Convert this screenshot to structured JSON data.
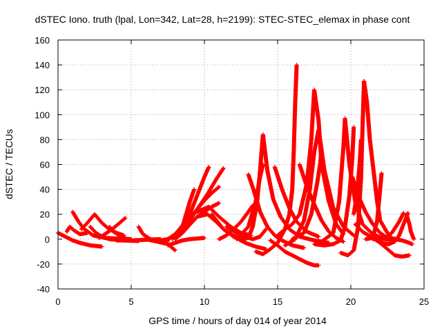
{
  "chart_data": {
    "type": "scatter",
    "title": "dSTEC Iono. truth (lpal, Lon=342, Lat=28, h=2199): STEC-STEC_elemax in phase cont",
    "xlabel": "GPS time / hours of day 014 of year 2014",
    "ylabel": "dSTEC  / TECUs",
    "xlim": [
      0,
      25
    ],
    "ylim": [
      -40,
      160
    ],
    "xticks": [
      0,
      5,
      10,
      15,
      20,
      25
    ],
    "yticks": [
      -40,
      -20,
      0,
      20,
      40,
      60,
      80,
      100,
      120,
      140,
      160
    ],
    "grid": true,
    "legend": "none",
    "marker": "+",
    "color": "#ff0000",
    "series": [
      {
        "points": [
          [
            0,
            5
          ],
          [
            0.5,
            2
          ],
          [
            1.0,
            -1
          ],
          [
            1.5,
            -3
          ],
          [
            2.2,
            -5
          ],
          [
            3.0,
            -6
          ]
        ]
      },
      {
        "points": [
          [
            0.6,
            6
          ],
          [
            0.8,
            10
          ],
          [
            1.1,
            7
          ],
          [
            1.5,
            4
          ],
          [
            2.0,
            5
          ]
        ]
      },
      {
        "points": [
          [
            1.0,
            22
          ],
          [
            1.4,
            14
          ],
          [
            1.8,
            8
          ],
          [
            2.4,
            3
          ],
          [
            3.2,
            1
          ],
          [
            4.0,
            0.5
          ],
          [
            5.0,
            0
          ]
        ]
      },
      {
        "points": [
          [
            1.6,
            8
          ],
          [
            2.0,
            13
          ],
          [
            2.5,
            20
          ],
          [
            3.0,
            13
          ],
          [
            3.5,
            8
          ],
          [
            4.0,
            5
          ],
          [
            4.5,
            3
          ]
        ]
      },
      {
        "points": [
          [
            2.2,
            10
          ],
          [
            2.6,
            5
          ],
          [
            3.0,
            2
          ],
          [
            3.5,
            0
          ],
          [
            4.5,
            -1
          ],
          [
            5.5,
            -1.5
          ]
        ]
      },
      {
        "points": [
          [
            2.8,
            1
          ],
          [
            3.2,
            4
          ],
          [
            3.7,
            8
          ],
          [
            4.1,
            12
          ],
          [
            4.6,
            17
          ]
        ]
      },
      {
        "points": [
          [
            3.5,
            10
          ],
          [
            3.8,
            6
          ],
          [
            4.2,
            3
          ],
          [
            4.6,
            1
          ]
        ]
      },
      {
        "points": [
          [
            4.0,
            -1
          ],
          [
            5.0,
            -1
          ],
          [
            6.0,
            -0.5
          ],
          [
            7.0,
            0
          ]
        ]
      },
      {
        "points": [
          [
            5.5,
            10
          ],
          [
            5.8,
            4
          ],
          [
            6.3,
            0
          ],
          [
            7.0,
            -1.5
          ],
          [
            7.5,
            -2
          ]
        ]
      },
      {
        "points": [
          [
            6.0,
            0
          ],
          [
            6.8,
            -2
          ],
          [
            7.5,
            -4
          ],
          [
            7.8,
            -7
          ],
          [
            8.0,
            -9
          ]
        ]
      },
      {
        "points": [
          [
            6.5,
            -1
          ],
          [
            7.0,
            -1
          ],
          [
            7.5,
            0
          ],
          [
            8.0,
            3
          ],
          [
            8.5,
            10
          ],
          [
            9.0,
            30
          ],
          [
            9.3,
            40
          ]
        ]
      },
      {
        "points": [
          [
            7.0,
            -2
          ],
          [
            7.5,
            0
          ],
          [
            8.0,
            4
          ],
          [
            8.5,
            11
          ],
          [
            9.0,
            20
          ],
          [
            9.5,
            35
          ],
          [
            10.0,
            50
          ],
          [
            10.3,
            58
          ]
        ]
      },
      {
        "points": [
          [
            7.3,
            -2
          ],
          [
            7.8,
            2
          ],
          [
            8.3,
            7
          ],
          [
            8.8,
            14
          ],
          [
            9.5,
            24
          ],
          [
            10.2,
            36
          ],
          [
            10.8,
            48
          ],
          [
            11.3,
            57
          ]
        ]
      },
      {
        "points": [
          [
            7.5,
            -5
          ],
          [
            8.0,
            -3
          ],
          [
            8.5,
            -1
          ],
          [
            9.0,
            0
          ],
          [
            9.5,
            0.5
          ],
          [
            10.0,
            1
          ]
        ]
      },
      {
        "points": [
          [
            7.8,
            0
          ],
          [
            8.5,
            7
          ],
          [
            9.0,
            15
          ],
          [
            9.5,
            24
          ],
          [
            10.0,
            31
          ],
          [
            10.5,
            37
          ],
          [
            11.0,
            42
          ]
        ]
      },
      {
        "points": [
          [
            8.0,
            0
          ],
          [
            8.5,
            5
          ],
          [
            9.0,
            12
          ],
          [
            9.5,
            18
          ],
          [
            10.0,
            22
          ],
          [
            10.5,
            26
          ],
          [
            11.0,
            29
          ]
        ]
      },
      {
        "points": [
          [
            8.5,
            5
          ],
          [
            9.5,
            18
          ],
          [
            10.2,
            20
          ],
          [
            10.8,
            14
          ],
          [
            11.3,
            8
          ],
          [
            11.8,
            4
          ],
          [
            12.3,
            1
          ],
          [
            12.8,
            0
          ]
        ]
      },
      {
        "points": [
          [
            9.5,
            22
          ],
          [
            10.3,
            26
          ],
          [
            11.0,
            18
          ],
          [
            11.8,
            10
          ],
          [
            12.5,
            5
          ],
          [
            13.2,
            3
          ]
        ]
      },
      {
        "points": [
          [
            10.5,
            20
          ],
          [
            11.3,
            8
          ],
          [
            12.0,
            2
          ],
          [
            12.8,
            -3
          ],
          [
            13.5,
            -6
          ],
          [
            14.2,
            -8
          ]
        ]
      },
      {
        "points": [
          [
            11.0,
            0
          ],
          [
            11.5,
            3
          ],
          [
            12.0,
            8
          ],
          [
            12.5,
            14
          ],
          [
            13.0,
            22
          ],
          [
            13.3,
            27
          ]
        ]
      },
      {
        "points": [
          [
            11.5,
            10
          ],
          [
            12.2,
            5
          ],
          [
            12.8,
            2
          ],
          [
            13.3,
            0
          ],
          [
            13.8,
            2
          ],
          [
            14.2,
            8
          ]
        ]
      },
      {
        "points": [
          [
            12.0,
            2
          ],
          [
            12.5,
            0
          ],
          [
            13.0,
            1
          ],
          [
            13.3,
            10
          ],
          [
            13.6,
            30
          ],
          [
            13.8,
            55
          ],
          [
            13.9,
            70
          ],
          [
            14.0,
            84
          ]
        ]
      },
      {
        "points": [
          [
            12.2,
            0
          ],
          [
            13.0,
            10
          ],
          [
            13.5,
            30
          ],
          [
            13.8,
            50
          ],
          [
            14.0,
            60
          ]
        ]
      },
      {
        "points": [
          [
            13.0,
            52
          ],
          [
            13.4,
            38
          ],
          [
            13.8,
            22
          ],
          [
            14.3,
            10
          ],
          [
            14.8,
            3
          ],
          [
            15.3,
            -1
          ],
          [
            16.0,
            -5
          ],
          [
            16.8,
            -7
          ]
        ]
      },
      {
        "points": [
          [
            13.5,
            -10
          ],
          [
            14.0,
            -12
          ],
          [
            14.5,
            -8
          ],
          [
            15.0,
            -3
          ],
          [
            15.5,
            8
          ],
          [
            15.8,
            20
          ],
          [
            16.0,
            40
          ],
          [
            16.1,
            70
          ],
          [
            16.2,
            110
          ],
          [
            16.3,
            140
          ]
        ]
      },
      {
        "points": [
          [
            14.0,
            84
          ],
          [
            14.3,
            55
          ],
          [
            14.7,
            32
          ],
          [
            15.2,
            18
          ],
          [
            15.8,
            8
          ],
          [
            16.5,
            2
          ],
          [
            17.5,
            -1
          ],
          [
            18.5,
            -3
          ]
        ]
      },
      {
        "points": [
          [
            14.5,
            -1
          ],
          [
            15.0,
            -5
          ],
          [
            15.5,
            -10
          ],
          [
            16.0,
            -13
          ],
          [
            16.5,
            -16
          ],
          [
            17.0,
            -19
          ],
          [
            17.5,
            -21
          ],
          [
            17.8,
            -21
          ]
        ]
      },
      {
        "points": [
          [
            14.8,
            58
          ],
          [
            15.3,
            40
          ],
          [
            15.8,
            25
          ],
          [
            16.3,
            14
          ],
          [
            17.0,
            6
          ],
          [
            17.8,
            2
          ]
        ]
      },
      {
        "points": [
          [
            15.0,
            3
          ],
          [
            15.5,
            8
          ],
          [
            16.0,
            12
          ],
          [
            16.5,
            20
          ],
          [
            17.0,
            45
          ],
          [
            17.3,
            80
          ],
          [
            17.5,
            120
          ],
          [
            17.8,
            95
          ],
          [
            18.0,
            60
          ],
          [
            18.5,
            30
          ],
          [
            19.0,
            12
          ],
          [
            19.5,
            4
          ]
        ]
      },
      {
        "points": [
          [
            15.5,
            -5
          ],
          [
            16.2,
            0
          ],
          [
            16.8,
            15
          ],
          [
            17.2,
            40
          ],
          [
            17.5,
            70
          ],
          [
            17.8,
            88
          ],
          [
            18.2,
            55
          ],
          [
            18.8,
            25
          ],
          [
            19.5,
            10
          ],
          [
            20.2,
            3
          ]
        ]
      },
      {
        "points": [
          [
            16.0,
            0
          ],
          [
            16.8,
            5
          ],
          [
            17.3,
            20
          ],
          [
            17.7,
            45
          ],
          [
            17.9,
            60
          ],
          [
            18.0,
            72
          ]
        ]
      },
      {
        "points": [
          [
            16.5,
            60
          ],
          [
            17.0,
            42
          ],
          [
            17.5,
            28
          ],
          [
            18.0,
            15
          ],
          [
            18.5,
            6
          ],
          [
            19.0,
            1
          ],
          [
            19.5,
            -2
          ]
        ]
      },
      {
        "points": [
          [
            17.5,
            -4
          ],
          [
            18.2,
            -5
          ],
          [
            18.8,
            -4
          ],
          [
            19.3,
            -1
          ],
          [
            19.6,
            10
          ],
          [
            19.9,
            35
          ],
          [
            20.1,
            65
          ],
          [
            20.2,
            90
          ]
        ]
      },
      {
        "points": [
          [
            18.0,
            -2
          ],
          [
            18.8,
            5
          ],
          [
            19.2,
            30
          ],
          [
            19.5,
            75
          ],
          [
            19.6,
            97
          ]
        ]
      },
      {
        "points": [
          [
            19.3,
            -11
          ],
          [
            19.8,
            -13
          ],
          [
            20.2,
            -9
          ],
          [
            20.5,
            10
          ],
          [
            20.7,
            50
          ],
          [
            20.8,
            90
          ],
          [
            20.9,
            127
          ]
        ]
      },
      {
        "points": [
          [
            19.6,
            97
          ],
          [
            19.9,
            60
          ],
          [
            20.3,
            30
          ],
          [
            20.8,
            12
          ],
          [
            21.5,
            4
          ],
          [
            22.3,
            0
          ],
          [
            23.0,
            -1
          ]
        ]
      },
      {
        "points": [
          [
            20.1,
            50
          ],
          [
            20.5,
            35
          ],
          [
            21.0,
            22
          ],
          [
            21.5,
            12
          ],
          [
            22.0,
            5
          ],
          [
            22.5,
            1
          ],
          [
            23.2,
            0
          ]
        ]
      },
      {
        "points": [
          [
            20.2,
            20
          ],
          [
            20.4,
            35
          ],
          [
            20.6,
            60
          ],
          [
            20.7,
            80
          ]
        ]
      },
      {
        "points": [
          [
            20.9,
            127
          ],
          [
            21.1,
            110
          ],
          [
            21.3,
            80
          ],
          [
            21.6,
            50
          ],
          [
            21.8,
            30
          ],
          [
            22.0,
            15
          ],
          [
            22.5,
            5
          ],
          [
            23.0,
            -2
          ]
        ]
      },
      {
        "points": [
          [
            20.3,
            12
          ],
          [
            20.8,
            6
          ],
          [
            21.5,
            1
          ],
          [
            22.0,
            -3
          ],
          [
            22.5,
            -8
          ],
          [
            23.0,
            -13
          ],
          [
            23.5,
            -14
          ],
          [
            24.0,
            -13
          ]
        ]
      },
      {
        "points": [
          [
            21.0,
            0
          ],
          [
            21.5,
            1
          ],
          [
            21.8,
            15
          ],
          [
            22.0,
            40
          ],
          [
            22.1,
            53
          ]
        ]
      },
      {
        "points": [
          [
            21.5,
            0
          ],
          [
            22.2,
            0
          ],
          [
            22.8,
            5
          ],
          [
            23.3,
            14
          ],
          [
            23.6,
            21
          ]
        ]
      },
      {
        "points": [
          [
            22.0,
            -3
          ],
          [
            22.6,
            -4
          ],
          [
            23.0,
            -2
          ],
          [
            23.3,
            3
          ],
          [
            23.6,
            12
          ],
          [
            23.9,
            21
          ]
        ]
      },
      {
        "points": [
          [
            23.0,
            0
          ],
          [
            23.5,
            -1
          ],
          [
            24.0,
            -3
          ],
          [
            24.2,
            -4
          ]
        ]
      },
      {
        "points": [
          [
            23.8,
            20
          ],
          [
            24.0,
            12
          ],
          [
            24.1,
            6
          ],
          [
            24.2,
            3
          ],
          [
            24.3,
            0
          ]
        ]
      }
    ]
  }
}
